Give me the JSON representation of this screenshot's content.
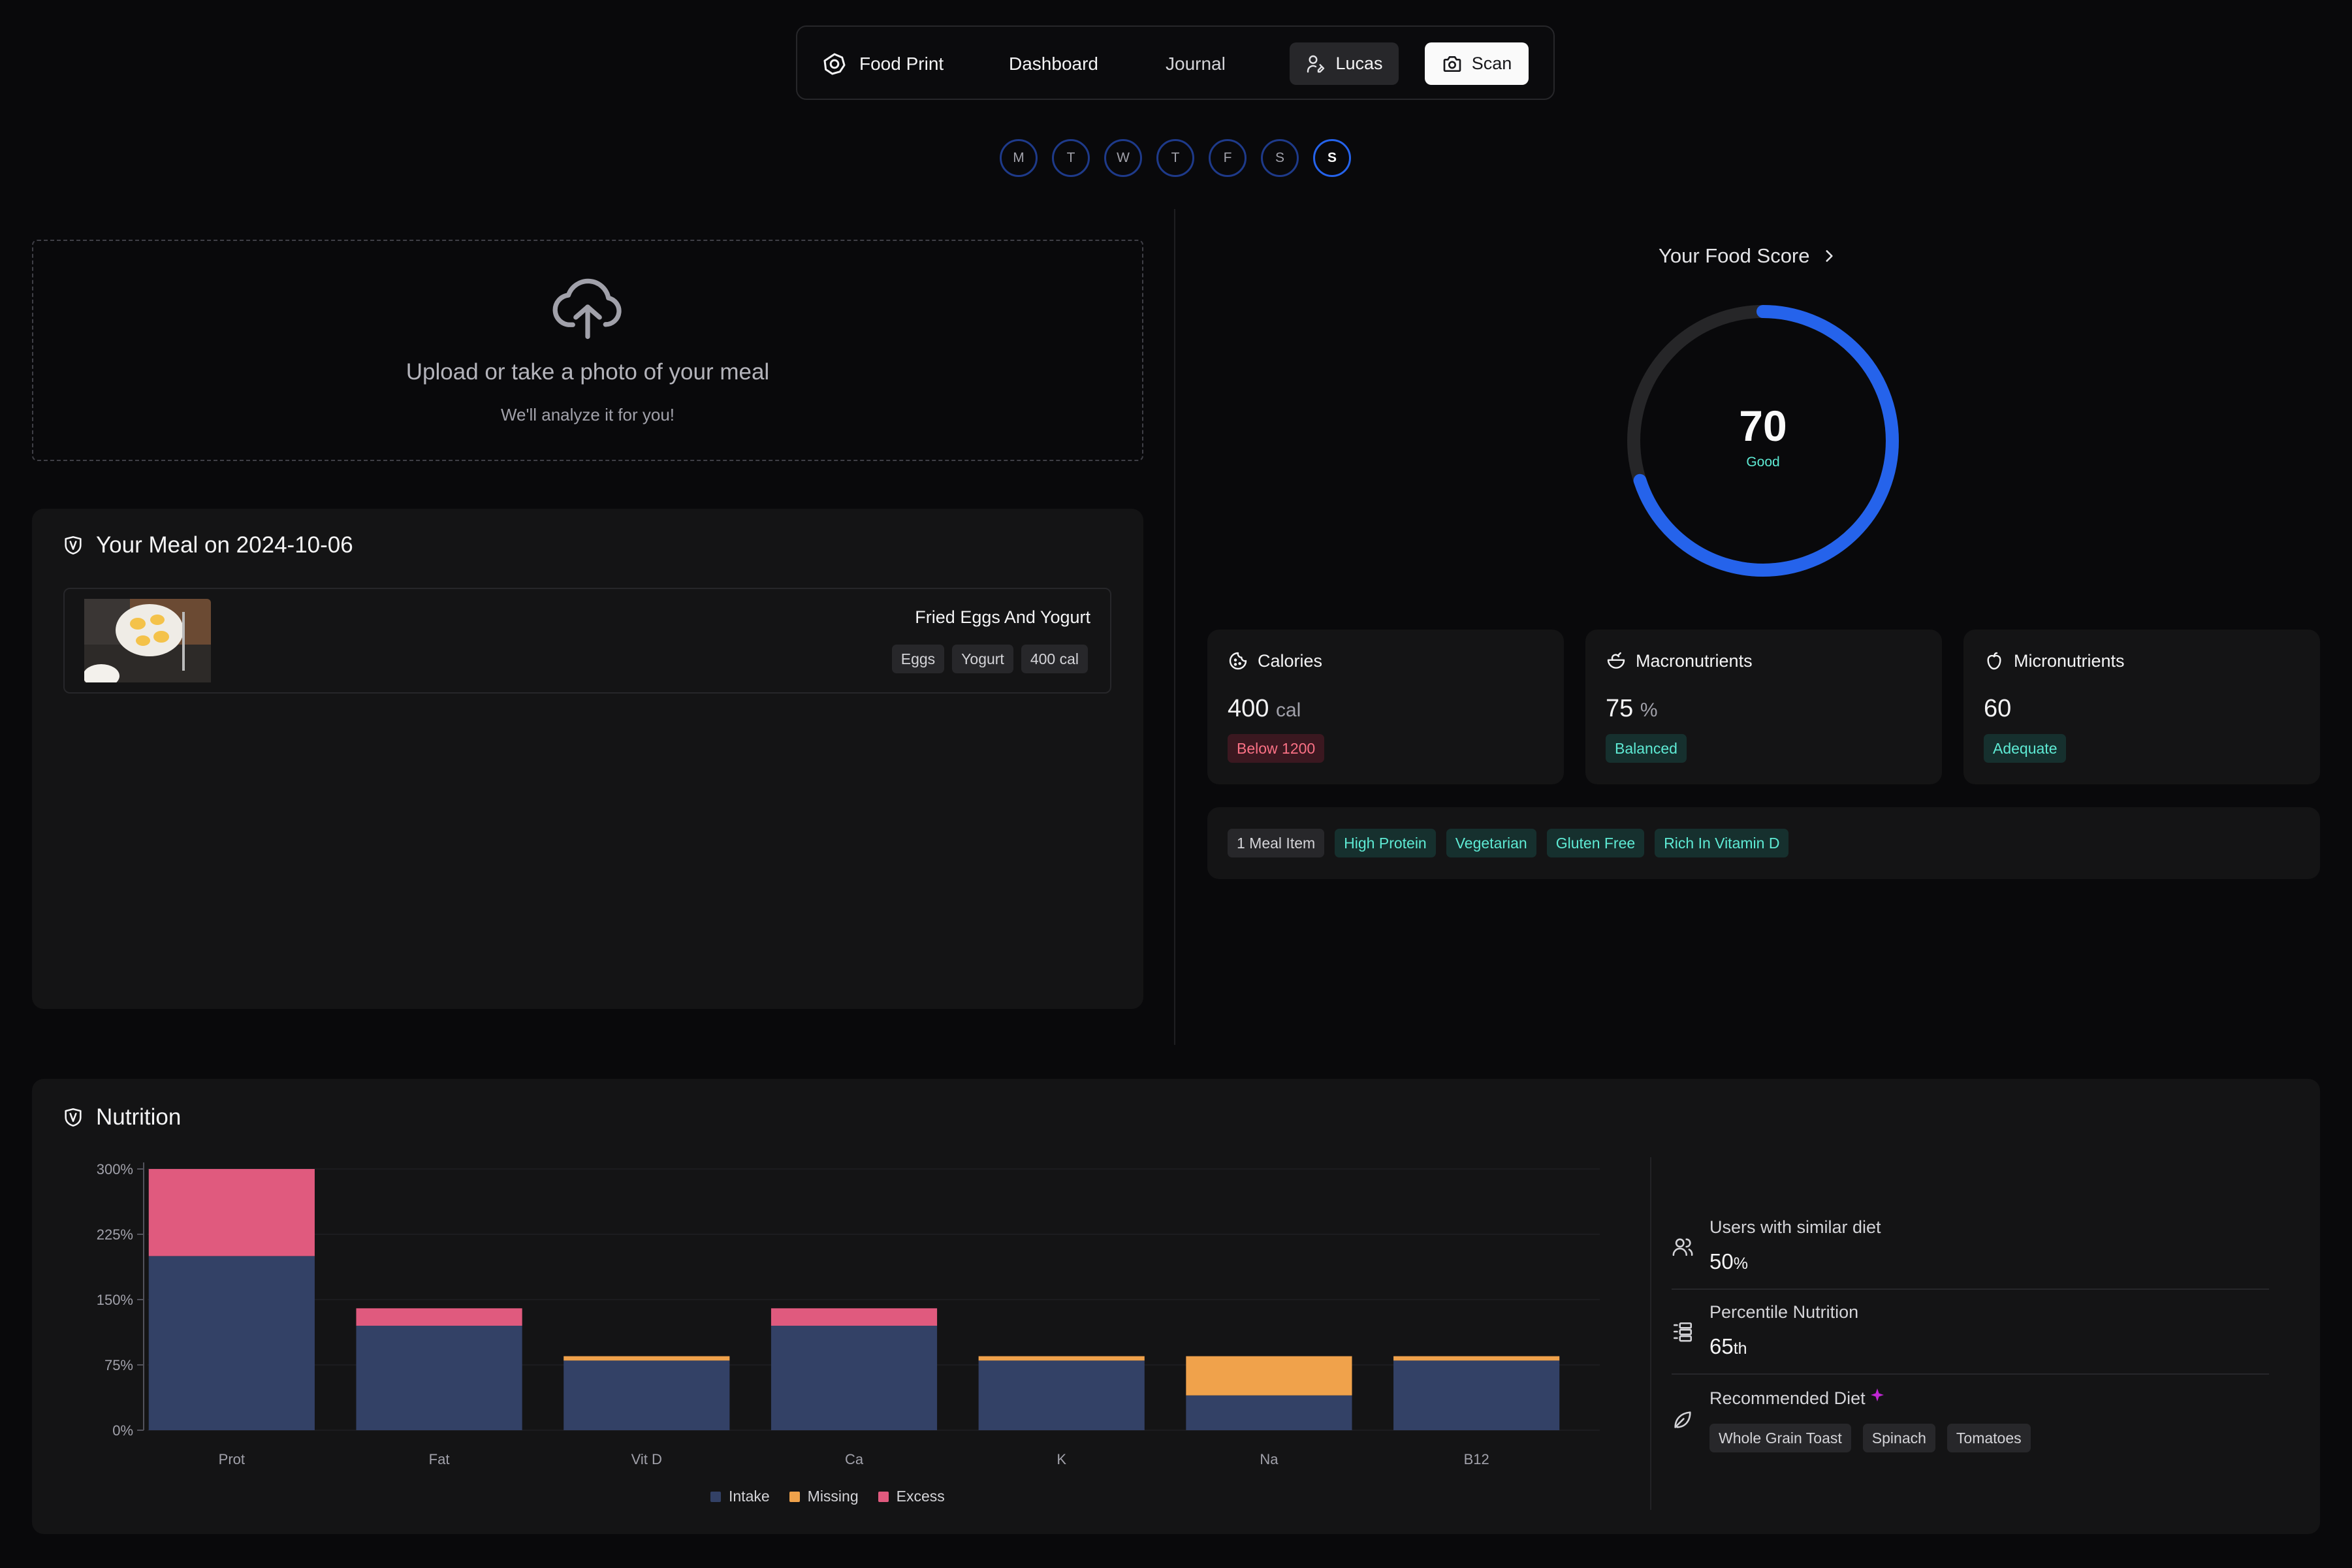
{
  "nav": {
    "brand": "Food Print",
    "links": [
      "Dashboard",
      "Journal"
    ],
    "user": "Lucas",
    "scan": "Scan"
  },
  "week": {
    "days": [
      "M",
      "T",
      "W",
      "T",
      "F",
      "S",
      "S"
    ],
    "active_index": 6
  },
  "upload": {
    "title": "Upload or take a photo of your meal",
    "subtitle": "We'll analyze it for you!"
  },
  "meal": {
    "title": "Your Meal on 2024-10-06",
    "items": [
      {
        "name": "Fried Eggs And Yogurt",
        "tags": [
          "Eggs",
          "Yogurt",
          "400 cal"
        ]
      }
    ]
  },
  "score": {
    "label": "Your Food Score",
    "value": "70",
    "rating": "Good",
    "fraction": 0.7
  },
  "stats": [
    {
      "title": "Calories",
      "value": "400",
      "unit": "cal",
      "badge": "Below 1200",
      "badge_color": "red",
      "icon": "cookie-icon"
    },
    {
      "title": "Macronutrients",
      "value": "75",
      "unit": "%",
      "badge": "Balanced",
      "badge_color": "teal",
      "icon": "salad-icon"
    },
    {
      "title": "Micronutrients",
      "value": "60",
      "unit": "",
      "badge": "Adequate",
      "badge_color": "teal",
      "icon": "apple-icon"
    }
  ],
  "diet_tags": [
    {
      "label": "1 Meal Item",
      "color": "gray"
    },
    {
      "label": "High Protein",
      "color": "teal"
    },
    {
      "label": "Vegetarian",
      "color": "teal"
    },
    {
      "label": "Gluten Free",
      "color": "teal"
    },
    {
      "label": "Rich In Vitamin D",
      "color": "teal"
    }
  ],
  "nutrition": {
    "title": "Nutrition",
    "insights": [
      {
        "title": "Users with similar diet",
        "value": "50",
        "suffix": "%",
        "icon": "users-icon"
      },
      {
        "title": "Percentile Nutrition",
        "value": "65",
        "suffix": "th",
        "icon": "ranking-icon"
      }
    ],
    "recommended": {
      "title": "Recommended Diet",
      "items": [
        "Whole Grain Toast",
        "Spinach",
        "Tomatoes"
      ]
    }
  },
  "chart_data": {
    "type": "bar",
    "stacked": true,
    "categories": [
      "Prot",
      "Fat",
      "Vit D",
      "Ca",
      "K",
      "Na",
      "B12"
    ],
    "series": [
      {
        "name": "Intake",
        "color": "#334166",
        "values": [
          200,
          120,
          80,
          120,
          80,
          40,
          80
        ]
      },
      {
        "name": "Missing",
        "color": "#f0a24b",
        "values": [
          0,
          0,
          5,
          0,
          5,
          45,
          5
        ]
      },
      {
        "name": "Excess",
        "color": "#e05a7e",
        "values": [
          100,
          20,
          0,
          20,
          0,
          0,
          0
        ]
      }
    ],
    "yticks": [
      "0%",
      "75%",
      "150%",
      "225%",
      "300%"
    ],
    "ytick_values": [
      0,
      75,
      150,
      225,
      300
    ],
    "ylim": [
      0,
      300
    ],
    "grid": true,
    "legend": "bottom"
  }
}
